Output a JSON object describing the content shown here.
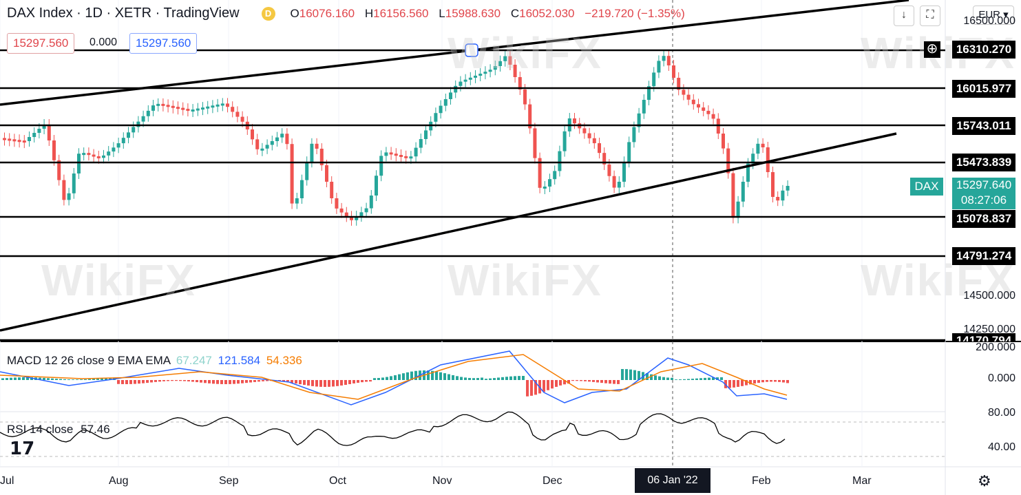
{
  "header": {
    "symbol": "DAX Index · 1D · XETR · TradingView",
    "badge": "D",
    "ohlc": [
      {
        "label": "O",
        "value": "16076.160"
      },
      {
        "label": "H",
        "value": "16156.560"
      },
      {
        "label": "L",
        "value": "15988.630"
      },
      {
        "label": "C",
        "value": "16052.030"
      },
      {
        "label": "",
        "value": "−219.720 (−1.35%)"
      }
    ]
  },
  "inputs": {
    "left_value": "15297.560",
    "middle_value": "0.000",
    "right_value": "15297.560"
  },
  "currency": "EUR",
  "price_axis": {
    "labels": [
      "16500.000",
      "14500.000",
      "14250.000",
      "200.000",
      "0.000",
      "80.00",
      "40.00"
    ],
    "levels": [
      "16310.270",
      "16015.977",
      "15743.011",
      "15473.839",
      "15078.837",
      "14791.274",
      "14170.794"
    ],
    "symbol_tag": "DAX",
    "last_price": "15297.640",
    "countdown": "08:27:06"
  },
  "time_axis": {
    "labels": [
      "Jul",
      "Aug",
      "Sep",
      "Oct",
      "Nov",
      "Dec",
      "Feb",
      "Mar"
    ],
    "crosshair_date": "06 Jan '22"
  },
  "macd": {
    "title": "MACD 12 26 close 9 EMA EMA",
    "hist": "67.247",
    "macd": "121.584",
    "signal": "54.336"
  },
  "rsi": {
    "title": "RSI 14 close",
    "value": "57.46"
  },
  "watermark": "WikiFX",
  "colors": {
    "up": "#26a69a",
    "down": "#ef5350",
    "macd_line": "#2962ff",
    "signal_line": "#f57c00"
  }
}
